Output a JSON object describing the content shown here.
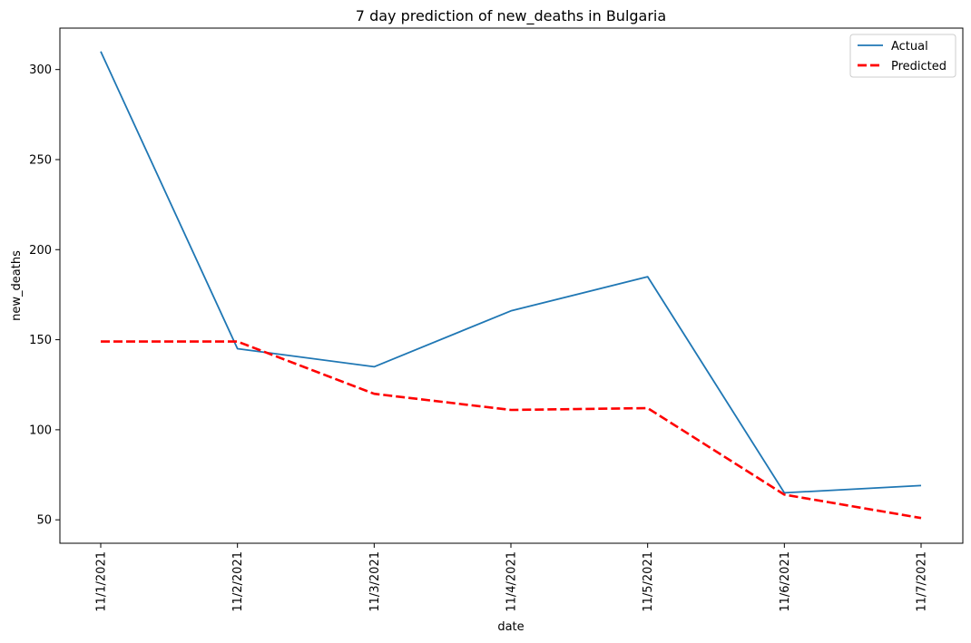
{
  "chart_data": {
    "type": "line",
    "title": "7 day prediction of new_deaths in Bulgaria",
    "xlabel": "date",
    "ylabel": "new_deaths",
    "categories": [
      "11/1/2021",
      "11/2/2021",
      "11/3/2021",
      "11/4/2021",
      "11/5/2021",
      "11/6/2021",
      "11/7/2021"
    ],
    "y_ticks": [
      50,
      100,
      150,
      200,
      250,
      300
    ],
    "ylim": [
      37,
      323
    ],
    "grid": false,
    "legend_position": "top-right",
    "series": [
      {
        "name": "Actual",
        "values": [
          310,
          145,
          135,
          166,
          185,
          65,
          69
        ],
        "color": "#1f77b4",
        "style": "solid"
      },
      {
        "name": "Predicted",
        "values": [
          149,
          149,
          120,
          111,
          112,
          64,
          51
        ],
        "color": "#ff0000",
        "style": "dashed"
      }
    ]
  }
}
